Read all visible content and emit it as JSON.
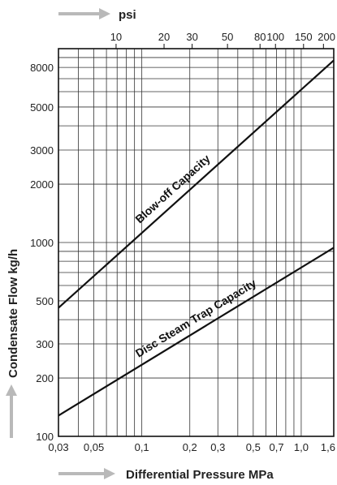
{
  "chart_data": {
    "type": "line",
    "xlabel": "Differential Pressure MPa",
    "x2label": "psi",
    "ylabel": "Condensate Flow kg/h",
    "xscale": "log",
    "yscale": "log",
    "xlim": [
      0.03,
      1.6
    ],
    "ylim": [
      100,
      10000
    ],
    "grid": true,
    "x_ticks": [
      {
        "value": 0.03,
        "label": "0,03"
      },
      {
        "value": 0.05,
        "label": "0,05"
      },
      {
        "value": 0.1,
        "label": "0,1"
      },
      {
        "value": 0.2,
        "label": "0,2"
      },
      {
        "value": 0.3,
        "label": "0,3"
      },
      {
        "value": 0.5,
        "label": "0,5"
      },
      {
        "value": 0.7,
        "label": "0,7"
      },
      {
        "value": 1.0,
        "label": "1,0"
      },
      {
        "value": 1.6,
        "label": "1,6"
      }
    ],
    "x2_ticks": [
      {
        "value": 10,
        "label": "10"
      },
      {
        "value": 20,
        "label": "20"
      },
      {
        "value": 30,
        "label": "30"
      },
      {
        "value": 50,
        "label": "50"
      },
      {
        "value": 80,
        "label": "80"
      },
      {
        "value": 100,
        "label": "100"
      },
      {
        "value": 150,
        "label": "150"
      },
      {
        "value": 200,
        "label": "200"
      }
    ],
    "y_ticks": [
      {
        "value": 100,
        "label": "100"
      },
      {
        "value": 200,
        "label": "200"
      },
      {
        "value": 300,
        "label": "300"
      },
      {
        "value": 500,
        "label": "500"
      },
      {
        "value": 1000,
        "label": "1000"
      },
      {
        "value": 2000,
        "label": "2000"
      },
      {
        "value": 3000,
        "label": "3000"
      },
      {
        "value": 5000,
        "label": "5000"
      },
      {
        "value": 8000,
        "label": "8000"
      }
    ],
    "series": [
      {
        "name": "Blow-off Capacity",
        "x": [
          0.03,
          1.6
        ],
        "y": [
          460,
          8700
        ]
      },
      {
        "name": "Disc Steam Trap Capacity",
        "x": [
          0.03,
          1.6
        ],
        "y": [
          128,
          940
        ]
      }
    ],
    "arrow_color": "#b9b9b9",
    "line_color": "#111111"
  }
}
